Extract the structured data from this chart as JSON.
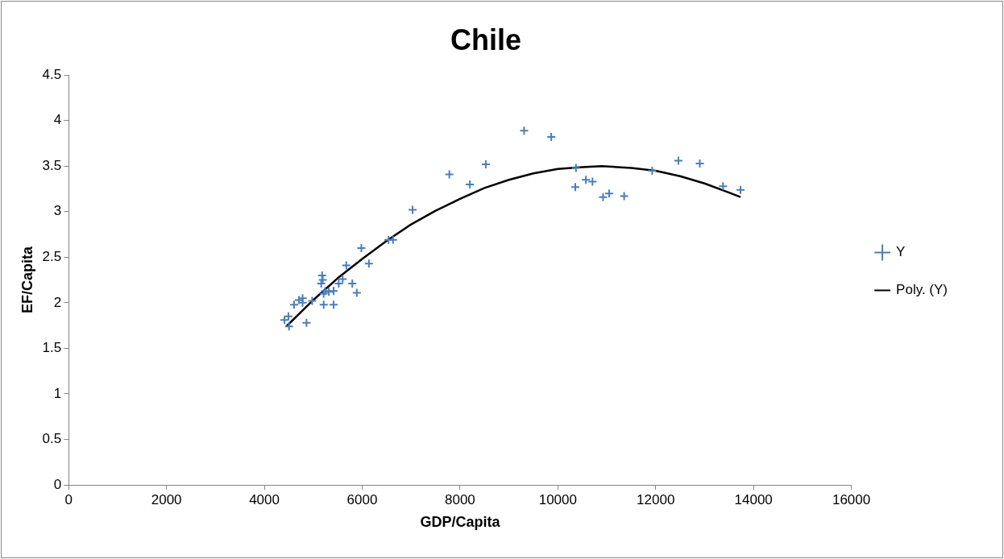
{
  "chart_data": {
    "type": "scatter",
    "title": "Chile",
    "xlabel": "GDP/Capita",
    "ylabel": "EF/Capita",
    "xlim": [
      0,
      16000
    ],
    "xticks": [
      0,
      2000,
      4000,
      6000,
      8000,
      10000,
      12000,
      14000,
      16000
    ],
    "ylim": [
      0,
      4.5
    ],
    "yticks": [
      0,
      0.5,
      1,
      1.5,
      2,
      2.5,
      3,
      3.5,
      4,
      4.5
    ],
    "grid": false,
    "legend": "right",
    "series": [
      {
        "name": "Y",
        "marker": "cross",
        "color": "#4a7ebb",
        "x": [
          4412,
          4492,
          4504,
          4608,
          4708,
          4782,
          4782,
          4862,
          4978,
          5181,
          5163,
          5194,
          5213,
          5213,
          5244,
          5318,
          5416,
          5416,
          5521,
          5601,
          5675,
          5798,
          5890,
          5983,
          6137,
          6538,
          6630,
          7030,
          7782,
          8201,
          8527,
          9310,
          9865,
          10370,
          10357,
          10573,
          10708,
          10924,
          11048,
          11355,
          11928,
          12464,
          12902,
          13377,
          13734
        ],
        "values": [
          1.81,
          1.85,
          1.74,
          1.98,
          2.03,
          2.05,
          2.0,
          1.78,
          2.02,
          2.3,
          2.21,
          2.25,
          2.1,
          1.98,
          2.13,
          2.12,
          2.13,
          1.98,
          2.21,
          2.26,
          2.41,
          2.21,
          2.11,
          2.6,
          2.43,
          2.69,
          2.69,
          3.02,
          3.41,
          3.3,
          3.52,
          3.89,
          3.82,
          3.48,
          3.27,
          3.35,
          3.33,
          3.16,
          3.2,
          3.17,
          3.45,
          3.56,
          3.53,
          3.28,
          3.24
        ]
      },
      {
        "name": "Poly. (Y)",
        "type": "line",
        "marker": "none",
        "line_style": "solid",
        "color": "#000000",
        "x": [
          4450,
          5000,
          5500,
          6000,
          6500,
          7000,
          7500,
          8000,
          8500,
          9000,
          9500,
          10000,
          10500,
          10900,
          11500,
          12000,
          12500,
          13000,
          13500,
          13734
        ],
        "values": [
          1.74,
          2.03,
          2.27,
          2.48,
          2.68,
          2.86,
          3.01,
          3.14,
          3.26,
          3.35,
          3.42,
          3.47,
          3.49,
          3.5,
          3.48,
          3.45,
          3.39,
          3.31,
          3.21,
          3.16
        ]
      }
    ]
  }
}
